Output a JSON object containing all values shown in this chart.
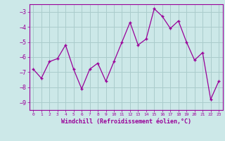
{
  "x": [
    0,
    1,
    2,
    3,
    4,
    5,
    6,
    7,
    8,
    9,
    10,
    11,
    12,
    13,
    14,
    15,
    16,
    17,
    18,
    19,
    20,
    21,
    22,
    23
  ],
  "y": [
    -6.8,
    -7.4,
    -6.3,
    -6.1,
    -5.2,
    -6.8,
    -8.1,
    -6.8,
    -6.4,
    -7.6,
    -6.3,
    -5.0,
    -3.7,
    -5.2,
    -4.8,
    -2.8,
    -3.3,
    -4.1,
    -3.6,
    -5.0,
    -6.2,
    -5.7,
    -8.8,
    -7.6
  ],
  "line_color": "#990099",
  "marker": "+",
  "marker_size": 4,
  "bg_color": "#cce8e8",
  "grid_color": "#aacccc",
  "xlabel": "Windchill (Refroidissement éolien,°C)",
  "xlabel_color": "#990099",
  "tick_color": "#990099",
  "ylim": [
    -9.5,
    -2.5
  ],
  "yticks": [
    -9,
    -8,
    -7,
    -6,
    -5,
    -4,
    -3
  ],
  "xlim": [
    -0.5,
    23.5
  ],
  "xticks": [
    0,
    1,
    2,
    3,
    4,
    5,
    6,
    7,
    8,
    9,
    10,
    11,
    12,
    13,
    14,
    15,
    16,
    17,
    18,
    19,
    20,
    21,
    22,
    23
  ]
}
